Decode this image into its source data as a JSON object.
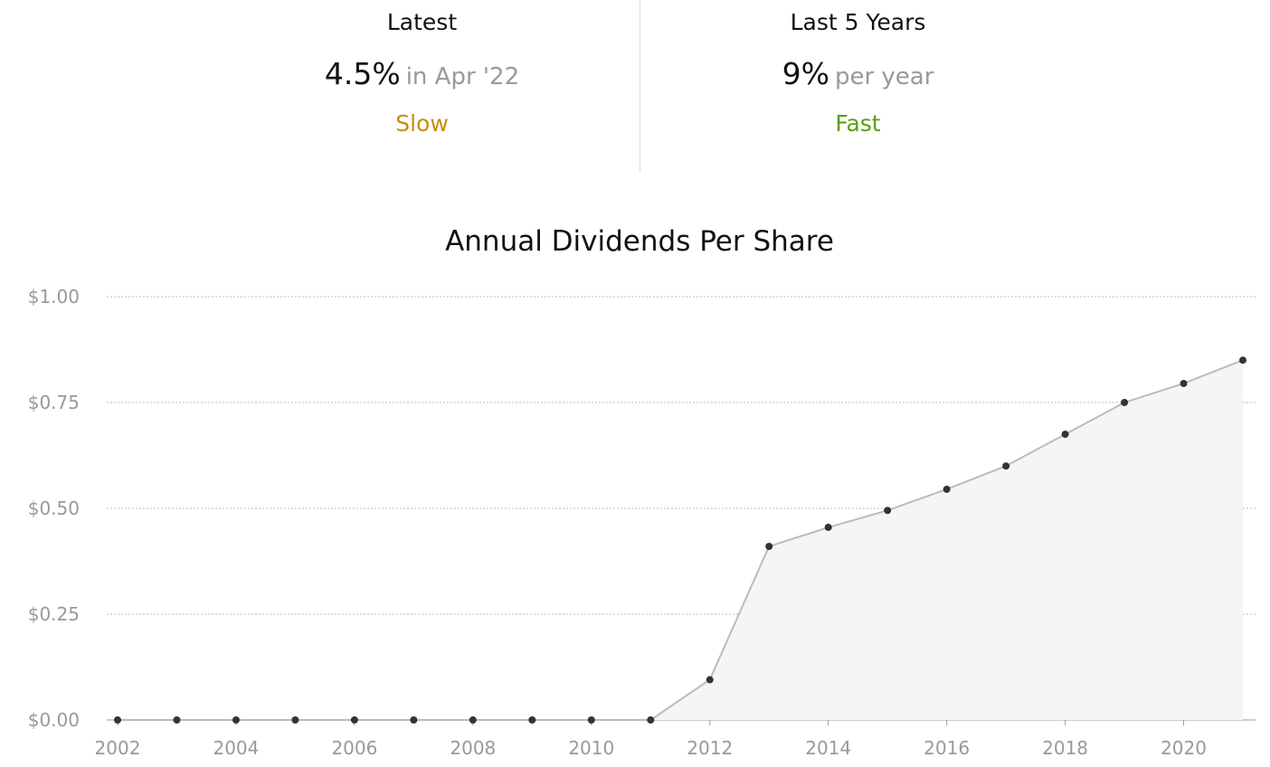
{
  "stats": [
    {
      "label": "Latest",
      "value": "4.5%",
      "sub": "in Apr '22",
      "rating": "Slow",
      "rating_color": "#cc8b0e"
    },
    {
      "label": "Last 5 Years",
      "value": "9%",
      "sub": "per year",
      "rating": "Fast",
      "rating_color": "#5a9e12"
    }
  ],
  "chart_data": {
    "type": "area",
    "title": "Annual Dividends Per Share",
    "xlabel": "",
    "ylabel": "",
    "x": [
      2002,
      2003,
      2004,
      2005,
      2006,
      2007,
      2008,
      2009,
      2010,
      2011,
      2012,
      2013,
      2014,
      2015,
      2016,
      2017,
      2018,
      2019,
      2020,
      2021
    ],
    "values": [
      0,
      0,
      0,
      0,
      0,
      0,
      0,
      0,
      0,
      0,
      0.095,
      0.41,
      0.455,
      0.495,
      0.545,
      0.6,
      0.675,
      0.75,
      0.795,
      0.85
    ],
    "ylim": [
      0,
      1
    ],
    "xlim": [
      2002,
      2021
    ],
    "yticks": [
      0,
      0.25,
      0.5,
      0.75,
      1
    ],
    "ytick_labels": [
      "$0.00",
      "$0.25",
      "$0.50",
      "$0.75",
      "$1.00"
    ],
    "xticks": [
      2002,
      2004,
      2006,
      2008,
      2010,
      2012,
      2014,
      2016,
      2018,
      2020
    ],
    "xtick_labels": [
      "2002",
      "2004",
      "2006",
      "2008",
      "2010",
      "2012",
      "2014",
      "2016",
      "2018",
      "2020"
    ],
    "grid": true,
    "legend": false,
    "line_color": "#bbbbbb",
    "fill_color": "#f5f5f5",
    "point_color": "#333333",
    "grid_color": "#bbbbbb"
  }
}
